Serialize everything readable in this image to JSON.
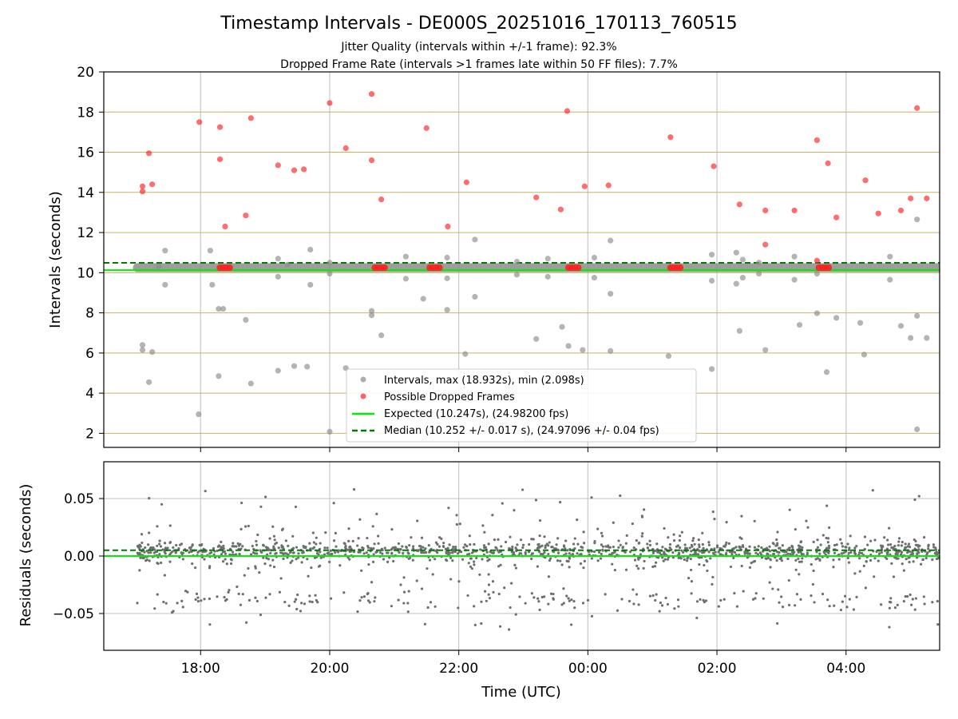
{
  "title": "Timestamp Intervals - DE000S_20251016_170113_760515",
  "subtitle_jitter": "Jitter Quality (intervals within +/-1 frame): 92.3%",
  "subtitle_dropped": "Dropped Frame Rate (intervals >1 frames late within 50 FF files): 7.7%",
  "colors": {
    "intervals": "#8c8c8c",
    "dropped": "#ff2020",
    "expected": "#00ee00",
    "median": "#007a00",
    "hgrid": "#c8b464",
    "vgrid": "#c8c8c8",
    "residuals": "#6e6e6e"
  },
  "chart_data": [
    {
      "type": "scatter",
      "name": "intervals-panel",
      "title": "Timestamp Intervals - DE000S_20251016_170113_760515",
      "ylabel": "Intervals (seconds)",
      "xlabel": "",
      "xlim_hours": [
        16.5,
        29.45
      ],
      "ylim": [
        1.3,
        20
      ],
      "yticks": [
        2,
        4,
        6,
        8,
        10,
        12,
        14,
        16,
        18,
        20
      ],
      "ytick_labels": [
        "2",
        "4",
        "6",
        "8",
        "10",
        "12",
        "14",
        "16",
        "18",
        "20"
      ],
      "xticks_hours": [
        18,
        20,
        22,
        24,
        26,
        28
      ],
      "legend": {
        "position": "lower-center",
        "intervals_label": "Intervals, max (18.932s), min (2.098s)",
        "dropped_label": "Possible Dropped Frames",
        "expected_label": "Expected (10.247s), (24.98200 fps)",
        "median_label": "Median (10.252 +/- 0.017 s), (24.97096 +/- 0.04 fps)"
      },
      "expected_value": 10.247,
      "median_value": 10.252,
      "band": {
        "x_start": 17.02,
        "x_end": 29.45,
        "y": 10.25
      },
      "series": [
        {
          "name": "Intervals",
          "points": [
            [
              17.1,
              6.4
            ],
            [
              17.1,
              6.15
            ],
            [
              17.2,
              4.55
            ],
            [
              17.25,
              6.05
            ],
            [
              17.35,
              10.3
            ],
            [
              17.45,
              11.1
            ],
            [
              17.45,
              9.4
            ],
            [
              17.97,
              2.95
            ],
            [
              18.15,
              11.1
            ],
            [
              18.18,
              9.4
            ],
            [
              18.28,
              8.2
            ],
            [
              18.35,
              8.2
            ],
            [
              18.28,
              4.85
            ],
            [
              18.7,
              7.65
            ],
            [
              18.78,
              4.48
            ],
            [
              19.2,
              10.7
            ],
            [
              19.2,
              9.8
            ],
            [
              19.2,
              5.12
            ],
            [
              19.35,
              10.4
            ],
            [
              19.45,
              5.35
            ],
            [
              19.65,
              5.32
            ],
            [
              19.7,
              11.15
            ],
            [
              19.7,
              9.4
            ],
            [
              20.0,
              10.5
            ],
            [
              20.0,
              9.95
            ],
            [
              20.0,
              2.08
            ],
            [
              20.25,
              5.25
            ],
            [
              20.65,
              8.1
            ],
            [
              20.65,
              7.88
            ],
            [
              20.8,
              6.88
            ],
            [
              21.18,
              10.8
            ],
            [
              21.18,
              9.7
            ],
            [
              21.45,
              8.7
            ],
            [
              21.82,
              10.75
            ],
            [
              21.82,
              9.72
            ],
            [
              21.82,
              8.15
            ],
            [
              22.1,
              5.95
            ],
            [
              22.25,
              11.65
            ],
            [
              22.25,
              8.8
            ],
            [
              22.9,
              10.55
            ],
            [
              22.9,
              9.9
            ],
            [
              23.2,
              6.7
            ],
            [
              23.38,
              10.7
            ],
            [
              23.38,
              9.8
            ],
            [
              23.6,
              7.3
            ],
            [
              23.7,
              6.35
            ],
            [
              23.92,
              6.15
            ],
            [
              24.1,
              10.75
            ],
            [
              24.1,
              9.75
            ],
            [
              24.35,
              11.6
            ],
            [
              24.35,
              8.95
            ],
            [
              24.35,
              6.1
            ],
            [
              25.25,
              5.85
            ],
            [
              25.92,
              10.9
            ],
            [
              25.92,
              9.6
            ],
            [
              25.92,
              5.2
            ],
            [
              26.3,
              11.0
            ],
            [
              26.3,
              9.45
            ],
            [
              26.35,
              7.1
            ],
            [
              26.4,
              10.65
            ],
            [
              26.4,
              9.75
            ],
            [
              26.65,
              10.5
            ],
            [
              26.65,
              9.95
            ],
            [
              26.75,
              6.15
            ],
            [
              27.2,
              10.8
            ],
            [
              27.2,
              9.65
            ],
            [
              27.28,
              7.4
            ],
            [
              27.55,
              7.98
            ],
            [
              27.55,
              9.95
            ],
            [
              27.7,
              5.05
            ],
            [
              27.85,
              7.75
            ],
            [
              28.22,
              7.5
            ],
            [
              28.28,
              5.92
            ],
            [
              28.68,
              10.8
            ],
            [
              28.68,
              9.65
            ],
            [
              28.85,
              7.35
            ],
            [
              29.0,
              6.75
            ],
            [
              29.1,
              12.65
            ],
            [
              29.1,
              7.85
            ],
            [
              29.1,
              2.2
            ],
            [
              29.25,
              6.75
            ]
          ]
        },
        {
          "name": "Possible Dropped Frames",
          "points": [
            [
              17.1,
              14.3
            ],
            [
              17.1,
              14.05
            ],
            [
              17.2,
              15.95
            ],
            [
              17.25,
              14.4
            ],
            [
              17.98,
              17.5
            ],
            [
              18.3,
              17.25
            ],
            [
              18.3,
              15.65
            ],
            [
              18.38,
              12.3
            ],
            [
              18.7,
              12.85
            ],
            [
              18.78,
              17.7
            ],
            [
              19.2,
              15.35
            ],
            [
              19.45,
              15.1
            ],
            [
              19.6,
              15.15
            ],
            [
              20.0,
              18.45
            ],
            [
              20.25,
              16.2
            ],
            [
              20.65,
              18.9
            ],
            [
              20.65,
              15.6
            ],
            [
              20.8,
              13.65
            ],
            [
              21.5,
              17.2
            ],
            [
              21.83,
              12.3
            ],
            [
              22.12,
              14.5
            ],
            [
              23.2,
              13.75
            ],
            [
              23.58,
              13.15
            ],
            [
              23.68,
              18.05
            ],
            [
              23.95,
              14.3
            ],
            [
              24.32,
              14.35
            ],
            [
              25.28,
              16.75
            ],
            [
              25.95,
              15.3
            ],
            [
              26.35,
              13.4
            ],
            [
              26.75,
              13.1
            ],
            [
              26.75,
              11.4
            ],
            [
              27.2,
              13.1
            ],
            [
              27.55,
              16.6
            ],
            [
              27.55,
              10.6
            ],
            [
              27.72,
              15.45
            ],
            [
              27.85,
              12.75
            ],
            [
              28.3,
              14.6
            ],
            [
              28.5,
              12.95
            ],
            [
              28.85,
              13.1
            ],
            [
              29.0,
              13.7
            ],
            [
              29.1,
              18.2
            ],
            [
              29.25,
              13.7
            ]
          ]
        },
        {
          "name": "Dropped clusters on median line",
          "points": [
            [
              18.3,
              10.25
            ],
            [
              18.35,
              10.25
            ],
            [
              18.4,
              10.25
            ],
            [
              18.45,
              10.25
            ],
            [
              20.7,
              10.25
            ],
            [
              20.75,
              10.25
            ],
            [
              20.8,
              10.25
            ],
            [
              20.85,
              10.25
            ],
            [
              21.55,
              10.25
            ],
            [
              21.6,
              10.25
            ],
            [
              21.65,
              10.25
            ],
            [
              21.7,
              10.25
            ],
            [
              23.7,
              10.25
            ],
            [
              23.75,
              10.25
            ],
            [
              23.8,
              10.25
            ],
            [
              23.85,
              10.25
            ],
            [
              25.28,
              10.25
            ],
            [
              25.33,
              10.25
            ],
            [
              25.38,
              10.25
            ],
            [
              25.43,
              10.25
            ],
            [
              27.58,
              10.25
            ],
            [
              27.63,
              10.25
            ],
            [
              27.68,
              10.25
            ],
            [
              27.73,
              10.25
            ]
          ]
        }
      ]
    },
    {
      "type": "scatter",
      "name": "residuals-panel",
      "ylabel": "Residuals (seconds)",
      "xlabel": "Time (UTC)",
      "xlim_hours": [
        16.5,
        29.45
      ],
      "ylim": [
        -0.082,
        0.082
      ],
      "yticks": [
        0.05,
        0.0,
        -0.05
      ],
      "ytick_labels": [
        "0.05",
        "0.00",
        "−0.05"
      ],
      "xticks_hours": [
        18,
        20,
        22,
        24,
        26,
        28
      ],
      "xtick_labels": [
        "18:00",
        "20:00",
        "22:00",
        "00:00",
        "02:00",
        "04:00"
      ],
      "expected_value": 0.0,
      "median_value": 0.005,
      "residual_points": 1500,
      "residual_distribution": {
        "x_start": 17.0,
        "x_end": 29.45,
        "core_center": 0.004,
        "core_spread": 0.012,
        "cluster_low": -0.038,
        "range": [
          -0.066,
          0.062
        ]
      }
    }
  ]
}
